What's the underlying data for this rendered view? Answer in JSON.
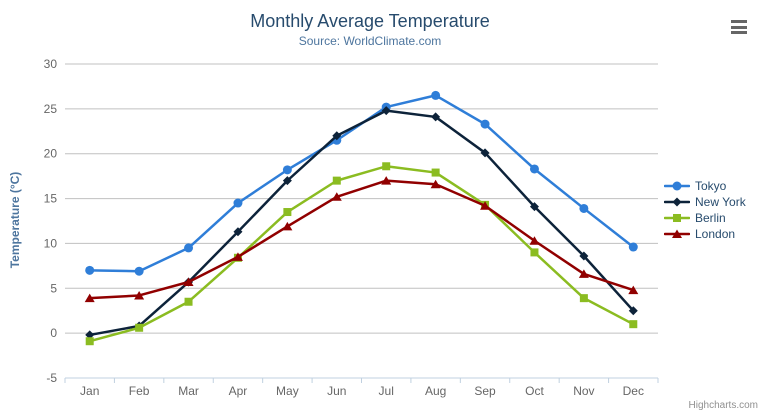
{
  "credits": {
    "label": "Highcharts.com"
  },
  "toolbar": {
    "context_menu_icon": "hamburger-menu-icon"
  },
  "chart_data": {
    "type": "line",
    "title": "Monthly Average Temperature",
    "subtitle": "Source: WorldClimate.com",
    "xlabel": "",
    "ylabel": "Temperature (°C)",
    "categories": [
      "Jan",
      "Feb",
      "Mar",
      "Apr",
      "May",
      "Jun",
      "Jul",
      "Aug",
      "Sep",
      "Oct",
      "Nov",
      "Dec"
    ],
    "ylim": [
      -5,
      30
    ],
    "yticks": [
      -5,
      0,
      5,
      10,
      15,
      20,
      25,
      30
    ],
    "grid": true,
    "legend_position": "right",
    "colors": {
      "grid_line": "#C0C0C0",
      "axis_line": "#C0D0E0",
      "axis_label": "#666666",
      "title_text": "#274b6d",
      "subtitle_text": "#4d759e"
    },
    "series": [
      {
        "name": "Tokyo",
        "color": "#2f7ed8",
        "marker": "circle",
        "values": [
          7.0,
          6.9,
          9.5,
          14.5,
          18.2,
          21.5,
          25.2,
          26.5,
          23.3,
          18.3,
          13.9,
          9.6
        ]
      },
      {
        "name": "New York",
        "color": "#0d233a",
        "marker": "diamond",
        "values": [
          -0.2,
          0.8,
          5.7,
          11.3,
          17.0,
          22.0,
          24.8,
          24.1,
          20.1,
          14.1,
          8.6,
          2.5
        ]
      },
      {
        "name": "Berlin",
        "color": "#8bbc21",
        "marker": "square",
        "values": [
          -0.9,
          0.6,
          3.5,
          8.4,
          13.5,
          17.0,
          18.6,
          17.9,
          14.3,
          9.0,
          3.9,
          1.0
        ]
      },
      {
        "name": "London",
        "color": "#910000",
        "marker": "triangle",
        "values": [
          3.9,
          4.2,
          5.7,
          8.5,
          11.9,
          15.2,
          17.0,
          16.6,
          14.2,
          10.3,
          6.6,
          4.8
        ]
      }
    ]
  }
}
